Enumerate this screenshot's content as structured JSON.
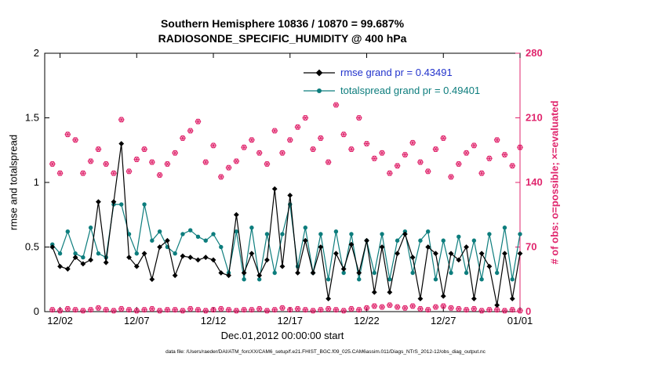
{
  "chart_data": {
    "type": "line",
    "title": "Southern Hemisphere 10836 / 10870 = 99.687%",
    "subtitle": "RADIOSONDE_SPECIFIC_HUMIDITY @ 400 hPa",
    "xlabel": "Dec.01,2012 00:00:00 start",
    "ylabel_left": "rmse and totalspread",
    "ylabel_right": "# of obs: o=possible; ×=evaluated",
    "colors": {
      "rmse_line": "#000000",
      "totalspread_line": "#0d7d7d",
      "obs_markers": "#e0266d",
      "right_axis": "#e0266d",
      "legend_rmse_text": "#2233cc",
      "legend_totalspread_text": "#0d7d7d"
    },
    "x_range_days": [
      0,
      31
    ],
    "x_tick_days": [
      1,
      6,
      11,
      16,
      21,
      26,
      31
    ],
    "x_tick_labels": [
      "12/02",
      "12/07",
      "12/12",
      "12/17",
      "12/22",
      "12/27",
      "01/01"
    ],
    "ylim_left": [
      0,
      2
    ],
    "ytick_values_left": [
      0,
      0.5,
      1,
      1.5,
      2
    ],
    "ytick_labels_left": [
      "0",
      "0.5",
      "1",
      "1.5",
      "2"
    ],
    "ylim_right": [
      0,
      280
    ],
    "ytick_values_right": [
      0,
      70,
      140,
      210,
      280
    ],
    "ytick_labels_right": [
      "0",
      "70",
      "140",
      "210",
      "280"
    ],
    "grid": false,
    "x_days": [
      0.5,
      1.0,
      1.5,
      2.0,
      2.5,
      3.0,
      3.5,
      4.0,
      4.5,
      5.0,
      5.5,
      6.0,
      6.5,
      7.0,
      7.5,
      8.0,
      8.5,
      9.0,
      9.5,
      10.0,
      10.5,
      11.0,
      11.5,
      12.0,
      12.5,
      13.0,
      13.5,
      14.0,
      14.5,
      15.0,
      15.5,
      16.0,
      16.5,
      17.0,
      17.5,
      18.0,
      18.5,
      19.0,
      19.5,
      20.0,
      20.5,
      21.0,
      21.5,
      22.0,
      22.5,
      23.0,
      23.5,
      24.0,
      24.5,
      25.0,
      25.5,
      26.0,
      26.5,
      27.0,
      27.5,
      28.0,
      28.5,
      29.0,
      29.5,
      30.0,
      30.5,
      31.0
    ],
    "series": [
      {
        "name": "obs_possible",
        "axis": "right",
        "color": "#e0266d",
        "line": false,
        "marker": "o",
        "values": [
          160,
          150,
          192,
          186,
          150,
          163,
          176,
          160,
          150,
          208,
          152,
          165,
          176,
          162,
          148,
          160,
          172,
          188,
          196,
          206,
          162,
          180,
          146,
          156,
          163,
          178,
          186,
          172,
          160,
          196,
          172,
          186,
          200,
          210,
          176,
          188,
          162,
          224,
          192,
          176,
          210,
          182,
          166,
          172,
          150,
          158,
          170,
          183,
          162,
          152,
          176,
          188,
          146,
          160,
          172,
          180,
          150,
          166,
          186,
          170,
          158,
          178
        ]
      },
      {
        "name": "obs_evaluated",
        "axis": "right",
        "color": "#e0266d",
        "line": false,
        "marker": "star",
        "values": [
          160,
          150,
          192,
          186,
          150,
          163,
          176,
          160,
          150,
          208,
          152,
          165,
          176,
          162,
          148,
          160,
          172,
          188,
          196,
          206,
          162,
          180,
          146,
          156,
          163,
          178,
          186,
          172,
          160,
          196,
          172,
          186,
          200,
          210,
          176,
          188,
          162,
          224,
          192,
          176,
          210,
          182,
          166,
          172,
          150,
          158,
          170,
          183,
          162,
          152,
          176,
          188,
          146,
          160,
          172,
          180,
          150,
          166,
          186,
          170,
          158,
          178
        ]
      },
      {
        "name": "obs_near_zero",
        "axis": "right",
        "color": "#e0266d",
        "line": false,
        "marker": "o-star",
        "values": [
          2,
          1,
          3,
          2,
          1,
          2,
          4,
          2,
          1,
          3,
          2,
          1,
          2,
          3,
          1,
          2,
          2,
          1,
          3,
          2,
          1,
          2,
          3,
          2,
          1,
          2,
          2,
          3,
          1,
          2,
          4,
          2,
          3,
          2,
          1,
          2,
          3,
          2,
          1,
          3,
          2,
          4,
          6,
          5,
          7,
          5,
          4,
          6,
          3,
          2,
          5,
          6,
          4,
          3,
          2,
          3,
          1,
          2,
          2,
          1,
          2,
          1
        ]
      },
      {
        "name": "totalspread",
        "axis": "left",
        "color": "#0d7d7d",
        "line": true,
        "marker": "dot",
        "values": [
          0.52,
          0.45,
          0.62,
          0.45,
          0.42,
          0.65,
          0.45,
          0.42,
          0.83,
          0.83,
          0.6,
          0.45,
          0.83,
          0.55,
          0.62,
          0.5,
          0.45,
          0.6,
          0.63,
          0.58,
          0.55,
          0.6,
          0.5,
          0.3,
          0.62,
          0.25,
          0.65,
          0.25,
          0.6,
          0.3,
          0.6,
          0.83,
          0.35,
          0.65,
          0.3,
          0.6,
          0.25,
          0.62,
          0.3,
          0.6,
          0.25,
          0.55,
          0.3,
          0.6,
          0.25,
          0.55,
          0.62,
          0.3,
          0.55,
          0.62,
          0.25,
          0.55,
          0.3,
          0.58,
          0.3,
          0.55,
          0.25,
          0.6,
          0.3,
          0.65,
          0.25,
          0.6
        ]
      },
      {
        "name": "rmse",
        "axis": "left",
        "color": "#000000",
        "line": true,
        "marker": "diamond",
        "values": [
          0.5,
          0.35,
          0.33,
          0.42,
          0.37,
          0.4,
          0.85,
          0.38,
          0.85,
          1.3,
          0.42,
          0.35,
          0.45,
          0.25,
          0.5,
          0.55,
          0.28,
          0.43,
          0.42,
          0.4,
          0.42,
          0.4,
          0.3,
          0.28,
          0.75,
          0.3,
          0.45,
          0.28,
          0.4,
          0.95,
          0.35,
          0.9,
          0.3,
          0.55,
          0.3,
          0.5,
          0.1,
          0.45,
          0.33,
          0.52,
          0.3,
          0.55,
          0.15,
          0.5,
          0.15,
          0.45,
          0.6,
          0.42,
          0.1,
          0.5,
          0.45,
          0.12,
          0.45,
          0.4,
          0.5,
          0.1,
          0.45,
          0.35,
          0.05,
          0.45,
          0.1,
          0.45
        ]
      }
    ],
    "legend": {
      "position": "top-right-inside",
      "entries": [
        {
          "label": "rmse grand pr = 0.43491",
          "text_color": "#2233cc",
          "line_color": "#000000",
          "marker": "diamond"
        },
        {
          "label": "totalspread grand pr = 0.49401",
          "text_color": "#0d7d7d",
          "line_color": "#0d7d7d",
          "marker": "dot"
        }
      ]
    }
  },
  "footer": {
    "datafile_text": "data file: /Users/raeder/DAI/ATM_forcXX/CAM6_setup/f.e21.FHIST_BGC.f09_025.CAM6assim.011/Diags_NTrS_2012-12/obs_diag_output.nc"
  }
}
